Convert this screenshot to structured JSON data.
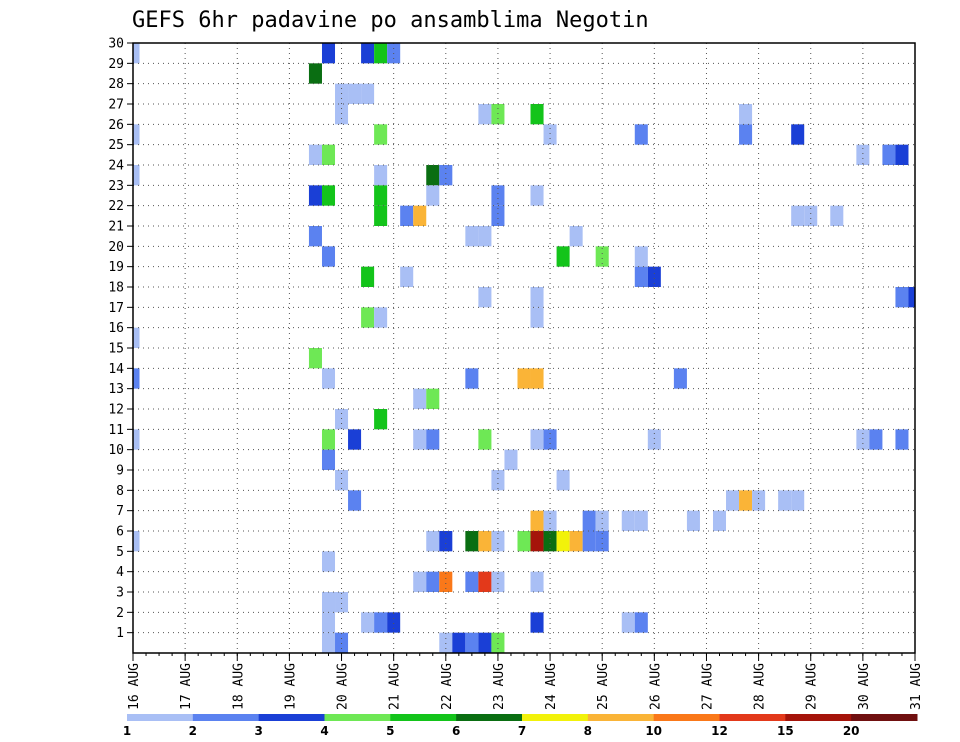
{
  "chart_data": {
    "type": "heatmap",
    "title": "GEFS 6hr padavine po ansamblima Negotin",
    "y_ticks": [
      "1",
      "2",
      "3",
      "4",
      "5",
      "6",
      "7",
      "8",
      "9",
      "10",
      "11",
      "12",
      "13",
      "14",
      "15",
      "16",
      "17",
      "18",
      "19",
      "20",
      "21",
      "22",
      "23",
      "24",
      "25",
      "26",
      "27",
      "28",
      "29",
      "30"
    ],
    "x_ticks": [
      "16 AUG",
      "17 AUG",
      "18 AUG",
      "19 AUG",
      "20 AUG",
      "21 AUG",
      "22 AUG",
      "23 AUG",
      "24 AUG",
      "25 AUG",
      "26 AUG",
      "27 AUG",
      "28 AUG",
      "29 AUG",
      "30 AUG",
      "31 AUG"
    ],
    "x_start_day": 16,
    "x_end_day": 31,
    "steps_per_day": 4,
    "y_range": [
      0,
      30
    ],
    "grid": true,
    "legend": {
      "position": "bottom",
      "labels": [
        "1",
        "2",
        "3",
        "4",
        "5",
        "6",
        "7",
        "8",
        "10",
        "12",
        "15",
        "20"
      ],
      "colors": [
        "#a9bff5",
        "#5b82f0",
        "#1a3fd6",
        "#6ee855",
        "#13c41a",
        "#0a6e12",
        "#f2f20a",
        "#fab437",
        "#fa7819",
        "#e3391a",
        "#a5140a",
        "#701010"
      ]
    },
    "cells": [
      {
        "x": 16.0,
        "y": 30,
        "c": 0
      },
      {
        "x": 19.75,
        "y": 30,
        "c": 2
      },
      {
        "x": 20.5,
        "y": 30,
        "c": 2
      },
      {
        "x": 20.75,
        "y": 30,
        "c": 4
      },
      {
        "x": 21.0,
        "y": 30,
        "c": 1
      },
      {
        "x": 19.5,
        "y": 29,
        "c": 5
      },
      {
        "x": 20.0,
        "y": 28,
        "c": 0
      },
      {
        "x": 20.25,
        "y": 28,
        "c": 0
      },
      {
        "x": 20.5,
        "y": 28,
        "c": 0
      },
      {
        "x": 20.0,
        "y": 27,
        "c": 0
      },
      {
        "x": 22.75,
        "y": 27,
        "c": 0
      },
      {
        "x": 23.0,
        "y": 27,
        "c": 3
      },
      {
        "x": 23.75,
        "y": 27,
        "c": 4
      },
      {
        "x": 27.75,
        "y": 27,
        "c": 0
      },
      {
        "x": 16.0,
        "y": 26,
        "c": 0
      },
      {
        "x": 20.75,
        "y": 26,
        "c": 3
      },
      {
        "x": 24.0,
        "y": 26,
        "c": 0
      },
      {
        "x": 25.75,
        "y": 26,
        "c": 1
      },
      {
        "x": 27.75,
        "y": 26,
        "c": 1
      },
      {
        "x": 28.75,
        "y": 26,
        "c": 2
      },
      {
        "x": 19.5,
        "y": 25,
        "c": 0
      },
      {
        "x": 19.75,
        "y": 25,
        "c": 3
      },
      {
        "x": 30.0,
        "y": 25,
        "c": 0
      },
      {
        "x": 30.5,
        "y": 25,
        "c": 1
      },
      {
        "x": 30.75,
        "y": 25,
        "c": 2
      },
      {
        "x": 16.0,
        "y": 24,
        "c": 0
      },
      {
        "x": 20.75,
        "y": 24,
        "c": 0
      },
      {
        "x": 21.75,
        "y": 24,
        "c": 5
      },
      {
        "x": 22.0,
        "y": 24,
        "c": 1
      },
      {
        "x": 19.5,
        "y": 23,
        "c": 2
      },
      {
        "x": 19.75,
        "y": 23,
        "c": 4
      },
      {
        "x": 20.75,
        "y": 23,
        "c": 4
      },
      {
        "x": 21.75,
        "y": 23,
        "c": 0
      },
      {
        "x": 23.0,
        "y": 23,
        "c": 1
      },
      {
        "x": 23.75,
        "y": 23,
        "c": 0
      },
      {
        "x": 20.75,
        "y": 22,
        "c": 4
      },
      {
        "x": 21.25,
        "y": 22,
        "c": 1
      },
      {
        "x": 21.5,
        "y": 22,
        "c": 7
      },
      {
        "x": 23.0,
        "y": 22,
        "c": 1
      },
      {
        "x": 28.75,
        "y": 22,
        "c": 0
      },
      {
        "x": 29.0,
        "y": 22,
        "c": 0
      },
      {
        "x": 29.5,
        "y": 22,
        "c": 0
      },
      {
        "x": 19.5,
        "y": 21,
        "c": 1
      },
      {
        "x": 22.5,
        "y": 21,
        "c": 0
      },
      {
        "x": 22.75,
        "y": 21,
        "c": 0
      },
      {
        "x": 24.5,
        "y": 21,
        "c": 0
      },
      {
        "x": 19.75,
        "y": 20,
        "c": 1
      },
      {
        "x": 24.25,
        "y": 20,
        "c": 4
      },
      {
        "x": 25.0,
        "y": 20,
        "c": 3
      },
      {
        "x": 25.75,
        "y": 20,
        "c": 0
      },
      {
        "x": 20.5,
        "y": 19,
        "c": 4
      },
      {
        "x": 21.25,
        "y": 19,
        "c": 0
      },
      {
        "x": 25.75,
        "y": 19,
        "c": 1
      },
      {
        "x": 26.0,
        "y": 19,
        "c": 2
      },
      {
        "x": 22.75,
        "y": 18,
        "c": 0
      },
      {
        "x": 23.75,
        "y": 18,
        "c": 0
      },
      {
        "x": 30.75,
        "y": 18,
        "c": 1
      },
      {
        "x": 31.0,
        "y": 18,
        "c": 2
      },
      {
        "x": 20.5,
        "y": 17,
        "c": 3
      },
      {
        "x": 20.75,
        "y": 17,
        "c": 0
      },
      {
        "x": 23.75,
        "y": 17,
        "c": 0
      },
      {
        "x": 16.0,
        "y": 16,
        "c": 0
      },
      {
        "x": 19.5,
        "y": 15,
        "c": 3
      },
      {
        "x": 16.0,
        "y": 14,
        "c": 1
      },
      {
        "x": 19.75,
        "y": 14,
        "c": 0
      },
      {
        "x": 22.5,
        "y": 14,
        "c": 1
      },
      {
        "x": 23.5,
        "y": 14,
        "c": 7
      },
      {
        "x": 23.75,
        "y": 14,
        "c": 7
      },
      {
        "x": 26.5,
        "y": 14,
        "c": 1
      },
      {
        "x": 21.5,
        "y": 13,
        "c": 0
      },
      {
        "x": 21.75,
        "y": 13,
        "c": 3
      },
      {
        "x": 20.0,
        "y": 12,
        "c": 0
      },
      {
        "x": 20.75,
        "y": 12,
        "c": 4
      },
      {
        "x": 16.0,
        "y": 11,
        "c": 0
      },
      {
        "x": 19.75,
        "y": 11,
        "c": 3
      },
      {
        "x": 20.25,
        "y": 11,
        "c": 2
      },
      {
        "x": 21.5,
        "y": 11,
        "c": 0
      },
      {
        "x": 21.75,
        "y": 11,
        "c": 1
      },
      {
        "x": 22.75,
        "y": 11,
        "c": 3
      },
      {
        "x": 23.75,
        "y": 11,
        "c": 0
      },
      {
        "x": 24.0,
        "y": 11,
        "c": 1
      },
      {
        "x": 26.0,
        "y": 11,
        "c": 0
      },
      {
        "x": 30.0,
        "y": 11,
        "c": 0
      },
      {
        "x": 30.25,
        "y": 11,
        "c": 1
      },
      {
        "x": 30.75,
        "y": 11,
        "c": 1
      },
      {
        "x": 19.75,
        "y": 10,
        "c": 1
      },
      {
        "x": 23.25,
        "y": 10,
        "c": 0
      },
      {
        "x": 20.0,
        "y": 9,
        "c": 0
      },
      {
        "x": 23.0,
        "y": 9,
        "c": 0
      },
      {
        "x": 24.25,
        "y": 9,
        "c": 0
      },
      {
        "x": 20.25,
        "y": 8,
        "c": 1
      },
      {
        "x": 27.5,
        "y": 8,
        "c": 0
      },
      {
        "x": 27.75,
        "y": 8,
        "c": 7
      },
      {
        "x": 28.0,
        "y": 8,
        "c": 0
      },
      {
        "x": 28.5,
        "y": 8,
        "c": 0
      },
      {
        "x": 28.75,
        "y": 8,
        "c": 0
      },
      {
        "x": 23.75,
        "y": 7,
        "c": 7
      },
      {
        "x": 24.0,
        "y": 7,
        "c": 0
      },
      {
        "x": 24.75,
        "y": 7,
        "c": 1
      },
      {
        "x": 25.0,
        "y": 7,
        "c": 0
      },
      {
        "x": 25.5,
        "y": 7,
        "c": 0
      },
      {
        "x": 25.75,
        "y": 7,
        "c": 0
      },
      {
        "x": 26.75,
        "y": 7,
        "c": 0
      },
      {
        "x": 27.25,
        "y": 7,
        "c": 0
      },
      {
        "x": 16.0,
        "y": 6,
        "c": 0
      },
      {
        "x": 21.75,
        "y": 6,
        "c": 0
      },
      {
        "x": 22.0,
        "y": 6,
        "c": 2
      },
      {
        "x": 22.5,
        "y": 6,
        "c": 5
      },
      {
        "x": 22.75,
        "y": 6,
        "c": 7
      },
      {
        "x": 23.0,
        "y": 6,
        "c": 0
      },
      {
        "x": 23.5,
        "y": 6,
        "c": 3
      },
      {
        "x": 23.75,
        "y": 6,
        "c": 10
      },
      {
        "x": 24.0,
        "y": 6,
        "c": 5
      },
      {
        "x": 24.25,
        "y": 6,
        "c": 6
      },
      {
        "x": 24.5,
        "y": 6,
        "c": 7
      },
      {
        "x": 24.75,
        "y": 6,
        "c": 1
      },
      {
        "x": 25.0,
        "y": 6,
        "c": 1
      },
      {
        "x": 19.75,
        "y": 5,
        "c": 0
      },
      {
        "x": 21.5,
        "y": 4,
        "c": 0
      },
      {
        "x": 21.75,
        "y": 4,
        "c": 1
      },
      {
        "x": 22.0,
        "y": 4,
        "c": 8
      },
      {
        "x": 22.5,
        "y": 4,
        "c": 1
      },
      {
        "x": 22.75,
        "y": 4,
        "c": 9
      },
      {
        "x": 23.0,
        "y": 4,
        "c": 0
      },
      {
        "x": 23.75,
        "y": 4,
        "c": 0
      },
      {
        "x": 19.75,
        "y": 3,
        "c": 0
      },
      {
        "x": 20.0,
        "y": 3,
        "c": 0
      },
      {
        "x": 19.75,
        "y": 2,
        "c": 0
      },
      {
        "x": 20.5,
        "y": 2,
        "c": 0
      },
      {
        "x": 20.75,
        "y": 2,
        "c": 1
      },
      {
        "x": 21.0,
        "y": 2,
        "c": 2
      },
      {
        "x": 23.75,
        "y": 2,
        "c": 2
      },
      {
        "x": 25.5,
        "y": 2,
        "c": 0
      },
      {
        "x": 25.75,
        "y": 2,
        "c": 1
      },
      {
        "x": 19.75,
        "y": 1,
        "c": 0
      },
      {
        "x": 20.0,
        "y": 1,
        "c": 1
      },
      {
        "x": 22.0,
        "y": 1,
        "c": 0
      },
      {
        "x": 22.25,
        "y": 1,
        "c": 2
      },
      {
        "x": 22.5,
        "y": 1,
        "c": 1
      },
      {
        "x": 22.75,
        "y": 1,
        "c": 2
      },
      {
        "x": 23.0,
        "y": 1,
        "c": 3
      }
    ]
  }
}
